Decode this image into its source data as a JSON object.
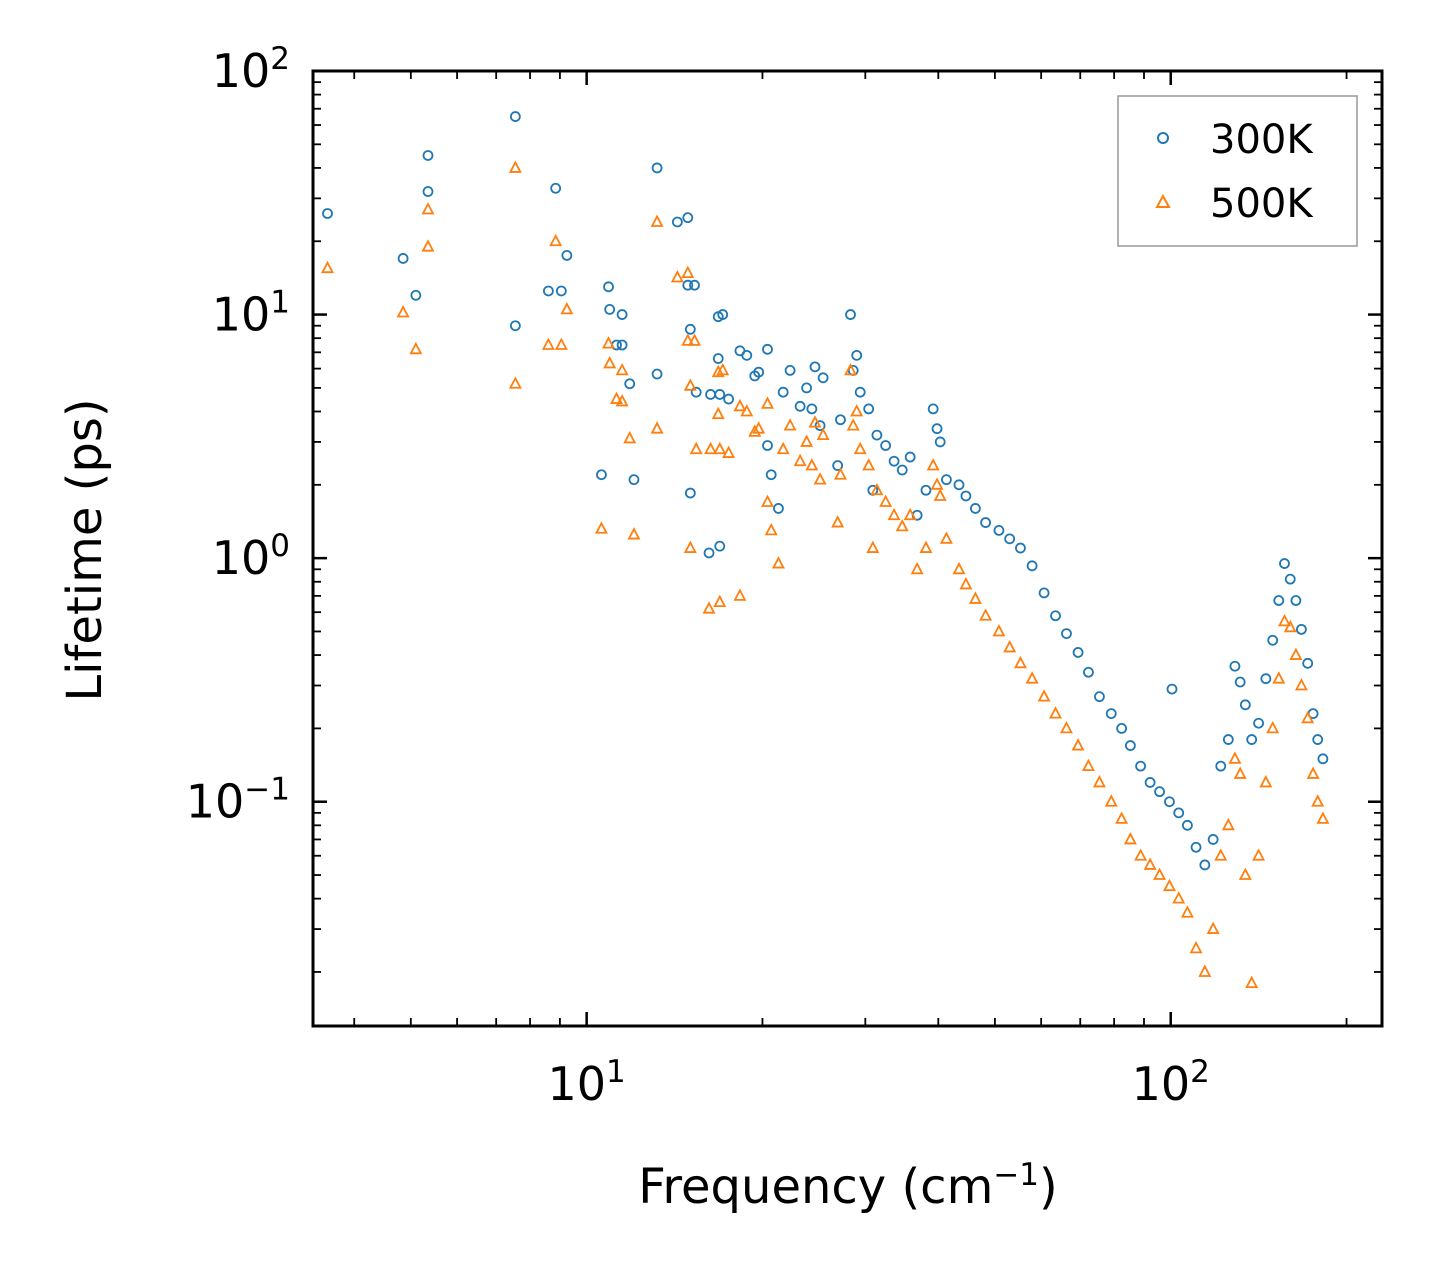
{
  "chart_data": {
    "type": "scatter",
    "title": "",
    "xlabel": "Frequency (cm",
    "xlabel_sup": "−1",
    "xlabel_end": ")",
    "ylabel": "Lifetime (ps)",
    "xscale": "log",
    "yscale": "log",
    "xlim": [
      3.4,
      230
    ],
    "ylim": [
      0.012,
      100
    ],
    "x_ticks": [
      {
        "value": 10,
        "base": "10",
        "exp": "1"
      },
      {
        "value": 100,
        "base": "10",
        "exp": "2"
      }
    ],
    "y_ticks": [
      {
        "value": 100,
        "base": "10",
        "exp": "2"
      },
      {
        "value": 10,
        "base": "10",
        "exp": "1"
      },
      {
        "value": 1,
        "base": "10",
        "exp": "0"
      },
      {
        "value": 0.1,
        "base": "10",
        "exp": "−1"
      }
    ],
    "legend_position": "top-right",
    "series": [
      {
        "name": "300K",
        "marker": "circle",
        "color": "#1f77b4",
        "points": [
          [
            3.6,
            26
          ],
          [
            4.85,
            17
          ],
          [
            5.1,
            12
          ],
          [
            5.35,
            45
          ],
          [
            5.35,
            32
          ],
          [
            7.55,
            65
          ],
          [
            7.55,
            9
          ],
          [
            8.6,
            12.5
          ],
          [
            8.85,
            33
          ],
          [
            9.05,
            12.5
          ],
          [
            9.25,
            17.5
          ],
          [
            10.6,
            2.2
          ],
          [
            10.9,
            13
          ],
          [
            10.95,
            10.5
          ],
          [
            11.25,
            7.5
          ],
          [
            11.5,
            10
          ],
          [
            11.5,
            7.5
          ],
          [
            11.85,
            5.2
          ],
          [
            12.05,
            2.1
          ],
          [
            13.2,
            40
          ],
          [
            13.2,
            5.7
          ],
          [
            14.3,
            24
          ],
          [
            14.9,
            25
          ],
          [
            14.9,
            13.2
          ],
          [
            15.3,
            13.2
          ],
          [
            15.05,
            8.7
          ],
          [
            15.05,
            1.85
          ],
          [
            15.4,
            4.8
          ],
          [
            16.2,
            1.05
          ],
          [
            16.3,
            4.7
          ],
          [
            16.8,
            9.8
          ],
          [
            16.8,
            6.6
          ],
          [
            16.9,
            4.7
          ],
          [
            16.9,
            1.12
          ],
          [
            17.1,
            10
          ],
          [
            17.5,
            4.5
          ],
          [
            18.3,
            7.1
          ],
          [
            18.8,
            6.8
          ],
          [
            19.4,
            5.6
          ],
          [
            19.7,
            5.8
          ],
          [
            20.4,
            7.2
          ],
          [
            20.4,
            2.9
          ],
          [
            20.7,
            2.2
          ],
          [
            21.3,
            1.6
          ],
          [
            21.7,
            4.8
          ],
          [
            22.3,
            5.9
          ],
          [
            23.2,
            4.2
          ],
          [
            23.8,
            5
          ],
          [
            24.3,
            4.1
          ],
          [
            24.6,
            6.1
          ],
          [
            25.1,
            3.5
          ],
          [
            25.4,
            5.5
          ],
          [
            26.9,
            2.4
          ],
          [
            27.2,
            3.7
          ],
          [
            28.3,
            10
          ],
          [
            28.6,
            5.9
          ],
          [
            29.0,
            6.8
          ],
          [
            29.4,
            4.8
          ],
          [
            30.4,
            4.1
          ],
          [
            30.9,
            1.9
          ],
          [
            31.4,
            3.2
          ],
          [
            32.5,
            2.9
          ],
          [
            33.6,
            2.5
          ],
          [
            34.7,
            2.3
          ],
          [
            35.8,
            2.6
          ],
          [
            36.8,
            1.5
          ],
          [
            38.1,
            1.9
          ],
          [
            39.2,
            4.1
          ],
          [
            39.8,
            3.4
          ],
          [
            40.3,
            3.0
          ],
          [
            41.3,
            2.1
          ],
          [
            43.4,
            2.0
          ],
          [
            44.6,
            1.8
          ],
          [
            46.3,
            1.6
          ],
          [
            48.2,
            1.4
          ],
          [
            50.8,
            1.3
          ],
          [
            53.0,
            1.2
          ],
          [
            55.3,
            1.1
          ],
          [
            57.9,
            0.93
          ],
          [
            60.7,
            0.72
          ],
          [
            63.5,
            0.58
          ],
          [
            66.3,
            0.49
          ],
          [
            69.4,
            0.41
          ],
          [
            72.3,
            0.34
          ],
          [
            75.5,
            0.27
          ],
          [
            79.1,
            0.23
          ],
          [
            82.4,
            0.2
          ],
          [
            85.3,
            0.17
          ],
          [
            88.8,
            0.14
          ],
          [
            92.2,
            0.12
          ],
          [
            95.7,
            0.11
          ],
          [
            99.5,
            0.1
          ],
          [
            100.5,
            0.29
          ],
          [
            103.2,
            0.09
          ],
          [
            106.8,
            0.08
          ],
          [
            110.5,
            0.065
          ],
          [
            114.4,
            0.055
          ],
          [
            118.2,
            0.07
          ],
          [
            121.8,
            0.14
          ],
          [
            125.5,
            0.18
          ],
          [
            128.8,
            0.36
          ],
          [
            131.5,
            0.31
          ],
          [
            134.2,
            0.25
          ],
          [
            137.6,
            0.18
          ],
          [
            141.4,
            0.21
          ],
          [
            145.5,
            0.32
          ],
          [
            149.5,
            0.46
          ],
          [
            153.1,
            0.67
          ],
          [
            156.6,
            0.95
          ],
          [
            160.2,
            0.82
          ],
          [
            163.8,
            0.67
          ],
          [
            167.4,
            0.51
          ],
          [
            171.6,
            0.37
          ],
          [
            175.3,
            0.23
          ],
          [
            178.5,
            0.18
          ],
          [
            182.2,
            0.15
          ]
        ]
      },
      {
        "name": "500K",
        "marker": "triangle",
        "color": "#ff7f0e",
        "points": [
          [
            3.6,
            15.5
          ],
          [
            4.85,
            10.2
          ],
          [
            5.1,
            7.2
          ],
          [
            5.35,
            27
          ],
          [
            5.35,
            19
          ],
          [
            7.55,
            40
          ],
          [
            7.55,
            5.2
          ],
          [
            8.6,
            7.5
          ],
          [
            8.85,
            20
          ],
          [
            9.05,
            7.5
          ],
          [
            9.25,
            10.5
          ],
          [
            10.6,
            1.32
          ],
          [
            10.9,
            7.6
          ],
          [
            10.95,
            6.3
          ],
          [
            11.25,
            4.5
          ],
          [
            11.5,
            5.9
          ],
          [
            11.5,
            4.4
          ],
          [
            11.85,
            3.1
          ],
          [
            12.05,
            1.25
          ],
          [
            13.2,
            24
          ],
          [
            13.2,
            3.4
          ],
          [
            14.3,
            14.2
          ],
          [
            14.9,
            14.8
          ],
          [
            14.9,
            7.8
          ],
          [
            15.3,
            7.8
          ],
          [
            15.05,
            5.1
          ],
          [
            15.05,
            1.1
          ],
          [
            15.4,
            2.8
          ],
          [
            16.2,
            0.62
          ],
          [
            16.3,
            2.8
          ],
          [
            16.8,
            5.8
          ],
          [
            16.8,
            3.9
          ],
          [
            16.9,
            2.8
          ],
          [
            16.9,
            0.66
          ],
          [
            17.1,
            5.9
          ],
          [
            17.5,
            2.7
          ],
          [
            18.3,
            4.2
          ],
          [
            18.3,
            0.7
          ],
          [
            18.8,
            4.0
          ],
          [
            19.4,
            3.3
          ],
          [
            19.7,
            3.4
          ],
          [
            20.4,
            4.3
          ],
          [
            20.4,
            1.7
          ],
          [
            20.7,
            1.3
          ],
          [
            21.3,
            0.95
          ],
          [
            21.7,
            2.8
          ],
          [
            22.3,
            3.5
          ],
          [
            23.2,
            2.5
          ],
          [
            23.8,
            3.0
          ],
          [
            24.3,
            2.4
          ],
          [
            24.6,
            3.6
          ],
          [
            25.1,
            2.1
          ],
          [
            25.4,
            3.2
          ],
          [
            26.9,
            1.4
          ],
          [
            27.2,
            2.2
          ],
          [
            28.3,
            5.9
          ],
          [
            28.6,
            3.5
          ],
          [
            29.0,
            4.0
          ],
          [
            29.4,
            2.8
          ],
          [
            30.4,
            2.4
          ],
          [
            30.9,
            1.1
          ],
          [
            31.4,
            1.9
          ],
          [
            32.5,
            1.7
          ],
          [
            33.6,
            1.5
          ],
          [
            34.7,
            1.35
          ],
          [
            35.8,
            1.5
          ],
          [
            36.8,
            0.9
          ],
          [
            38.1,
            1.1
          ],
          [
            39.2,
            2.4
          ],
          [
            39.8,
            2.0
          ],
          [
            40.3,
            1.8
          ],
          [
            41.3,
            1.2
          ],
          [
            43.4,
            0.9
          ],
          [
            44.6,
            0.78
          ],
          [
            46.3,
            0.68
          ],
          [
            48.2,
            0.58
          ],
          [
            50.8,
            0.5
          ],
          [
            53.0,
            0.43
          ],
          [
            55.3,
            0.37
          ],
          [
            57.9,
            0.32
          ],
          [
            60.7,
            0.27
          ],
          [
            63.5,
            0.23
          ],
          [
            66.3,
            0.2
          ],
          [
            69.4,
            0.17
          ],
          [
            72.3,
            0.14
          ],
          [
            75.5,
            0.12
          ],
          [
            79.1,
            0.1
          ],
          [
            82.4,
            0.085
          ],
          [
            85.3,
            0.07
          ],
          [
            88.8,
            0.06
          ],
          [
            92.2,
            0.055
          ],
          [
            95.7,
            0.05
          ],
          [
            99.5,
            0.045
          ],
          [
            103.2,
            0.04
          ],
          [
            106.8,
            0.035
          ],
          [
            110.5,
            0.025
          ],
          [
            114.4,
            0.02
          ],
          [
            118.2,
            0.03
          ],
          [
            121.8,
            0.06
          ],
          [
            125.5,
            0.08
          ],
          [
            128.8,
            0.15
          ],
          [
            131.5,
            0.13
          ],
          [
            134.2,
            0.05
          ],
          [
            137.6,
            0.018
          ],
          [
            141.4,
            0.06
          ],
          [
            145.5,
            0.12
          ],
          [
            149.5,
            0.2
          ],
          [
            153.1,
            0.32
          ],
          [
            156.6,
            0.55
          ],
          [
            160.2,
            0.52
          ],
          [
            163.8,
            0.4
          ],
          [
            167.4,
            0.3
          ],
          [
            171.6,
            0.22
          ],
          [
            175.3,
            0.13
          ],
          [
            178.5,
            0.1
          ],
          [
            182.2,
            0.085
          ]
        ]
      }
    ]
  }
}
